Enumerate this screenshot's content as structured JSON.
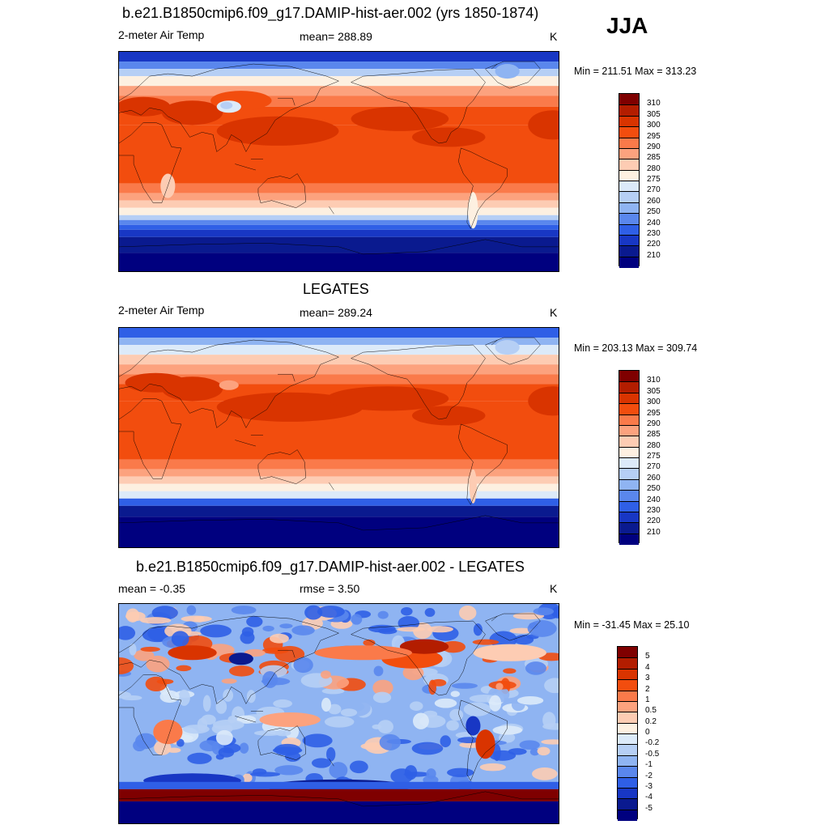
{
  "season": "JJA",
  "panels": [
    {
      "title": "b.e21.B1850cmip6.f09_g17.DAMIP-hist-aer.002 (yrs 1850-1874)",
      "left_label": "2-meter Air Temp",
      "center_label": "mean= 288.89",
      "units": "K",
      "minmax": "Min = 211.51 Max = 313.23",
      "field": "model",
      "colorbar_labels": [
        "310",
        "305",
        "300",
        "295",
        "290",
        "285",
        "280",
        "275",
        "270",
        "260",
        "250",
        "240",
        "230",
        "220",
        "210"
      ],
      "colors": [
        "#7f0000",
        "#b31d00",
        "#d93400",
        "#f24d0e",
        "#fa7a4a",
        "#fca27e",
        "#fdccb3",
        "#fdf0e1",
        "#dceaf9",
        "#b6cff5",
        "#8fb4f2",
        "#5a87ed",
        "#2f5fe6",
        "#1837c4",
        "#0a1a8f",
        "#00007f"
      ]
    },
    {
      "title": "LEGATES",
      "left_label": "2-meter Air Temp",
      "center_label": "mean= 289.24",
      "units": "K",
      "minmax": "Min = 203.13 Max = 309.74",
      "field": "obs",
      "colorbar_labels": [
        "310",
        "305",
        "300",
        "295",
        "290",
        "285",
        "280",
        "275",
        "270",
        "260",
        "250",
        "240",
        "230",
        "220",
        "210"
      ],
      "colors": [
        "#7f0000",
        "#b31d00",
        "#d93400",
        "#f24d0e",
        "#fa7a4a",
        "#fca27e",
        "#fdccb3",
        "#fdf0e1",
        "#dceaf9",
        "#b6cff5",
        "#8fb4f2",
        "#5a87ed",
        "#2f5fe6",
        "#1837c4",
        "#0a1a8f",
        "#00007f"
      ]
    },
    {
      "title": "b.e21.B1850cmip6.f09_g17.DAMIP-hist-aer.002 - LEGATES",
      "left_label": "mean =  -0.35",
      "center_label": "rmse =   3.50",
      "units": "K",
      "minmax": "Min = -31.45 Max =  25.10",
      "field": "diff",
      "colorbar_labels": [
        "5",
        "4",
        "3",
        "2",
        "1",
        "0.5",
        "0.2",
        "0",
        "-0.2",
        "-0.5",
        "-1",
        "-2",
        "-3",
        "-4",
        "-5"
      ],
      "colors": [
        "#7f0000",
        "#b31d00",
        "#d93400",
        "#f24d0e",
        "#fa7a4a",
        "#fca27e",
        "#fdccb3",
        "#fdf0e1",
        "#dceaf9",
        "#b6cff5",
        "#8fb4f2",
        "#5a87ed",
        "#2f5fe6",
        "#1837c4",
        "#0a1a8f",
        "#00007f"
      ]
    }
  ]
}
